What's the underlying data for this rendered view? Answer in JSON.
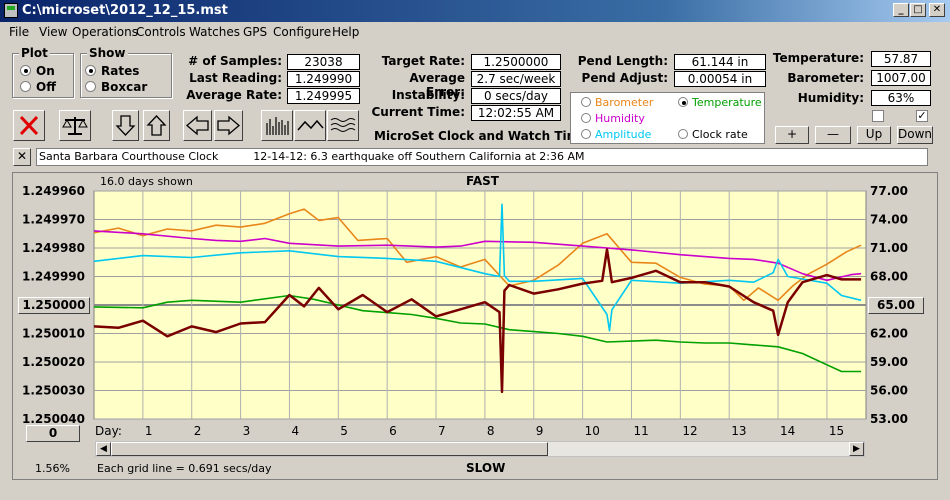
{
  "window": {
    "title": "C:\\microset\\2012_12_15.mst"
  },
  "menu": [
    "File",
    "View",
    "Operations",
    "Controls",
    "Watches",
    "GPS",
    "Configure",
    "Help"
  ],
  "plot_group": {
    "title": "Plot",
    "options": [
      "On",
      "Off"
    ],
    "selected": "On"
  },
  "show_group": {
    "title": "Show",
    "options": [
      "Rates",
      "Boxcar"
    ],
    "selected": "Rates"
  },
  "stats": {
    "samples_label": "# of Samples:",
    "samples_value": "23038",
    "last_reading_label": "Last Reading:",
    "last_reading_value": "1.249990",
    "average_rate_label": "Average Rate:",
    "average_rate_value": "1.249995",
    "target_rate_label": "Target Rate:",
    "target_rate_value": "1.2500000",
    "average_error_label": "Average Error:",
    "average_error_value": "2.7 sec/week",
    "instability_label": "Instability:",
    "instability_value": "0 secs/day",
    "current_time_label": "Current Time:",
    "current_time_value": "12:02:55 AM",
    "pend_length_label": "Pend Length:",
    "pend_length_value": "61.144 in",
    "pend_adjust_label": "Pend Adjust:",
    "pend_adjust_value": "0.00054 in",
    "temperature_label": "Temperature:",
    "temperature_value": "57.87",
    "barometer_label": "Barometer:",
    "barometer_value": "1007.00",
    "humidity_label": "Humidity:",
    "humidity_value": "63%"
  },
  "app_caption": "MicroSet Clock and Watch Timer",
  "legend": {
    "items": [
      {
        "label": "Barometer",
        "color": "#e8861a",
        "selected": false
      },
      {
        "label": "Temperature",
        "color": "#00a000",
        "selected": true
      },
      {
        "label": "Humidity",
        "color": "#cc00cc",
        "selected": false
      },
      {
        "label": "Amplitude",
        "color": "#00c8f0",
        "selected": false
      },
      {
        "label": "Clock rate",
        "color": "#000000",
        "selected": false
      }
    ]
  },
  "right_buttons": {
    "plus": "+",
    "minus": "—",
    "up": "Up",
    "down": "Down"
  },
  "message": "Santa Barbara Courthouse Clock          12-14-12: 6.3 earthquake off Southern California at 2:36 AM",
  "chart_data": {
    "type": "line",
    "top_label": "FAST",
    "bottom_label": "SLOW",
    "days_shown": "16.0 days shown",
    "grid_note": "Each grid line = 0.691 secs/day",
    "percent": "1.56%",
    "x_label": "Day:",
    "x_ticks": [
      1,
      2,
      3,
      4,
      5,
      6,
      7,
      8,
      9,
      10,
      11,
      12,
      13,
      14,
      15
    ],
    "xlim": [
      0,
      15.8
    ],
    "left_ticks": [
      "1.249960",
      "1.249970",
      "1.249980",
      "1.249990",
      "1.250000",
      "1.250010",
      "1.250020",
      "1.250030",
      "1.250040"
    ],
    "left_ylim": [
      1.24996,
      1.25004
    ],
    "left_reference": "1.250000",
    "right_ticks": [
      "77.00",
      "74.00",
      "71.00",
      "68.00",
      "65.00",
      "62.00",
      "59.00",
      "56.00",
      "53.00"
    ],
    "right_ylim": [
      53,
      77
    ],
    "right_reference": "65.00",
    "zero_button": "0",
    "series": [
      {
        "name": "Barometer",
        "color": "#e8861a",
        "x": [
          0,
          0.5,
          1,
          1.5,
          2,
          2.5,
          3,
          3.5,
          4,
          4.3,
          4.6,
          5,
          5.4,
          6,
          6.4,
          7,
          7.5,
          8,
          8.5,
          9,
          9.5,
          10,
          10.5,
          11,
          11.5,
          12,
          12.5,
          13,
          13.3,
          13.6,
          14,
          14.3,
          14.6,
          15,
          15.4,
          15.7
        ],
        "y": [
          72.6,
          73.1,
          72.3,
          73.0,
          72.8,
          73.4,
          73.2,
          73.6,
          74.6,
          75.1,
          73.9,
          74.2,
          71.8,
          72.0,
          69.5,
          70.1,
          69.0,
          69.8,
          67.0,
          67.6,
          69.2,
          71.5,
          72.5,
          69.5,
          69.4,
          67.9,
          67.2,
          67.0,
          65.5,
          66.8,
          65.5,
          67.0,
          68.2,
          69.3,
          70.6,
          71.3
        ]
      },
      {
        "name": "Humidity",
        "color": "#cc00cc",
        "x": [
          0,
          1,
          2,
          2.5,
          3,
          3.5,
          4,
          5,
          6,
          7,
          7.5,
          8,
          9,
          10,
          11,
          12,
          13,
          13.5,
          14,
          14.5,
          15,
          15.5,
          15.7
        ],
        "y": [
          72.8,
          72.5,
          72.0,
          71.8,
          71.7,
          72.0,
          71.5,
          71.2,
          71.3,
          71.1,
          71.2,
          71.7,
          71.6,
          71.2,
          70.8,
          70.3,
          69.9,
          69.8,
          69.4,
          68.3,
          67.6,
          68.2,
          68.3
        ]
      },
      {
        "name": "Amplitude",
        "color": "#00c8f0",
        "x": [
          0,
          1,
          2,
          3,
          4,
          5,
          6,
          7,
          8,
          8.3,
          8.35,
          8.4,
          8.5,
          9,
          10,
          10.5,
          10.55,
          10.6,
          11,
          12,
          13,
          13.5,
          13.9,
          14,
          14.2,
          15,
          15.3,
          15.7
        ],
        "y": [
          69.6,
          70.2,
          70.0,
          70.5,
          70.7,
          70.1,
          69.9,
          69.6,
          68.3,
          68.0,
          75.6,
          68.1,
          67.5,
          67.5,
          67.8,
          64.0,
          62.3,
          64.5,
          67.6,
          67.3,
          67.6,
          67.4,
          68.4,
          69.8,
          68.0,
          67.3,
          66.0,
          65.5
        ]
      },
      {
        "name": "Temperature",
        "color": "#00a000",
        "x": [
          0,
          1,
          1.5,
          2,
          3,
          4,
          4.5,
          5,
          5.5,
          6,
          6.5,
          7,
          7.5,
          8,
          8.5,
          9,
          9.5,
          10,
          10.5,
          11,
          11.5,
          12,
          12.5,
          13,
          13.5,
          14,
          14.5,
          15,
          15.3,
          15.7
        ],
        "y": [
          64.8,
          64.7,
          65.3,
          65.5,
          65.3,
          66.0,
          65.6,
          65.0,
          64.4,
          64.2,
          64.0,
          63.6,
          63.1,
          63.0,
          62.4,
          62.2,
          62.0,
          61.7,
          61.1,
          61.2,
          61.3,
          61.1,
          61.0,
          61.0,
          60.8,
          60.6,
          59.9,
          58.7,
          58.0,
          58.0
        ]
      },
      {
        "name": "Clock rate",
        "color": "#7a0000",
        "x": [
          0,
          0.5,
          1,
          1.5,
          2,
          2.5,
          3,
          3.5,
          4,
          4.3,
          4.6,
          5,
          5.5,
          6,
          6.5,
          7,
          7.5,
          8,
          8.3,
          8.35,
          8.4,
          8.5,
          9,
          9.5,
          10,
          10.4,
          10.5,
          10.6,
          11,
          11.5,
          12,
          12.5,
          13,
          13.5,
          13.9,
          14,
          14.2,
          14.5,
          15,
          15.3,
          15.7
        ],
        "y": [
          1.2500075,
          1.250008,
          1.2500055,
          1.250011,
          1.2500075,
          1.2500095,
          1.2500065,
          1.250006,
          1.2499965,
          1.2500005,
          1.249994,
          1.2500015,
          1.2499965,
          1.2500025,
          1.249998,
          1.250004,
          1.2500015,
          1.249999,
          1.2500025,
          1.2500305,
          1.249995,
          1.249993,
          1.249996,
          1.2499945,
          1.2499925,
          1.2499915,
          1.2499805,
          1.249992,
          1.2499905,
          1.249988,
          1.249992,
          1.249992,
          1.2499935,
          1.249999,
          1.250002,
          1.2500105,
          1.249999,
          1.249992,
          1.2499895,
          1.249991,
          1.249991
        ]
      }
    ]
  }
}
